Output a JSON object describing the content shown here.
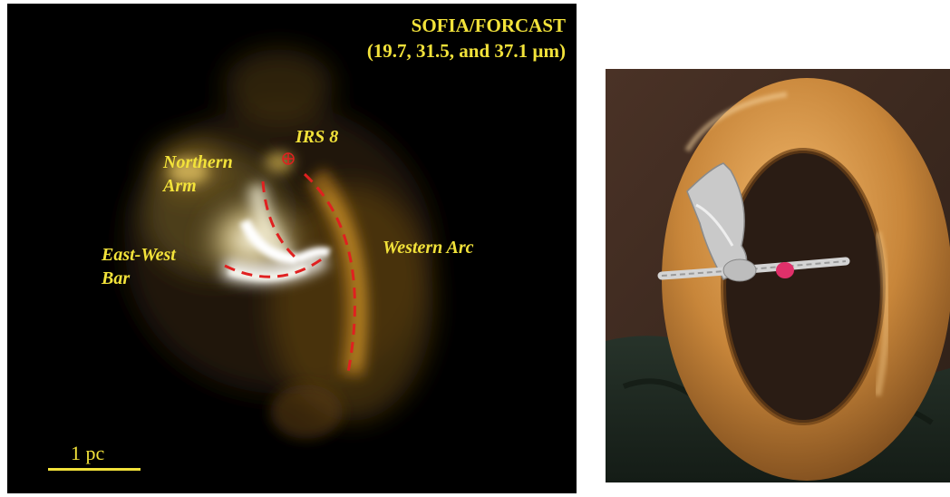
{
  "left_panel": {
    "instrument": "SOFIA/FORCAST",
    "wavelengths": "(19.7, 31.5, and 37.1 µm)",
    "labels": {
      "irs8": "IRS 8",
      "northern_arm": "Northern\nArm",
      "east_west_bar": "East-West\nBar",
      "western_arc": "Western Arc"
    },
    "scale_bar": "1 pc",
    "colors": {
      "label": "#f2e23a",
      "marker": "#e02020",
      "background": "#000000"
    }
  },
  "right_panel": {
    "colors": {
      "torus": "#c8863a",
      "foil": "#c9c9c9",
      "wall": "#3a2820",
      "cloth": "#1f2a22"
    }
  }
}
